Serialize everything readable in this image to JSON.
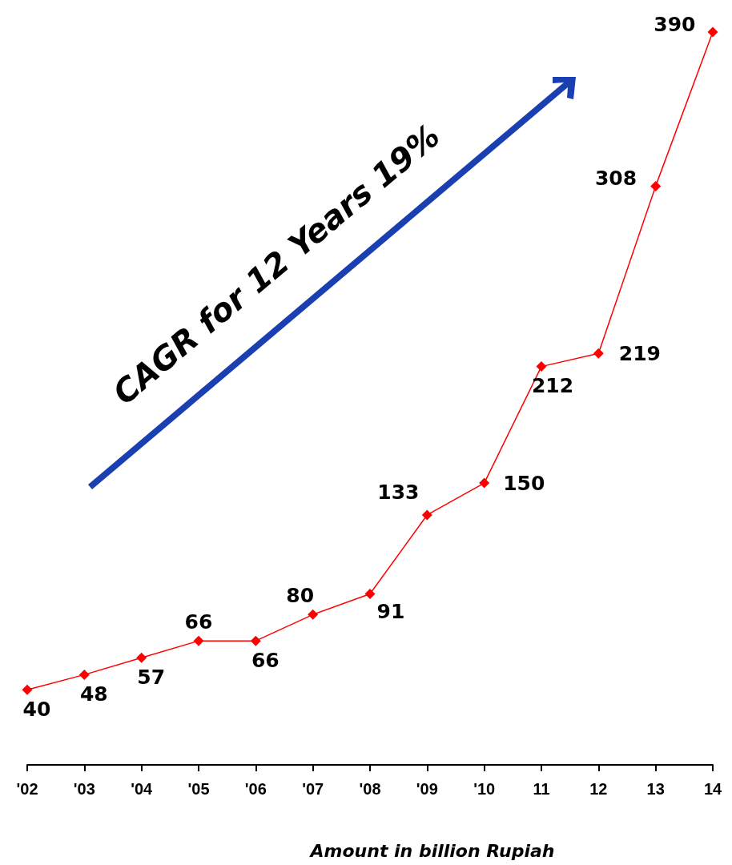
{
  "chart_data": {
    "type": "line",
    "xlabel": "Amount in billion Rupiah",
    "categories": [
      "'02",
      "'03",
      "'04",
      "'05",
      "'06",
      "'07",
      "'08",
      "'09",
      "'10",
      "11",
      "12",
      "13",
      "14"
    ],
    "series": [
      {
        "color": "#ff0000",
        "values": [
          40,
          48,
          57,
          66,
          66,
          80,
          91,
          133,
          150,
          212,
          219,
          308,
          390
        ]
      }
    ],
    "data_labels": true,
    "marker": "diamond",
    "line_style": "solid",
    "grid": false,
    "tick_labels": "x",
    "annotations": [
      "CAGR for 12 Years 19%"
    ]
  }
}
